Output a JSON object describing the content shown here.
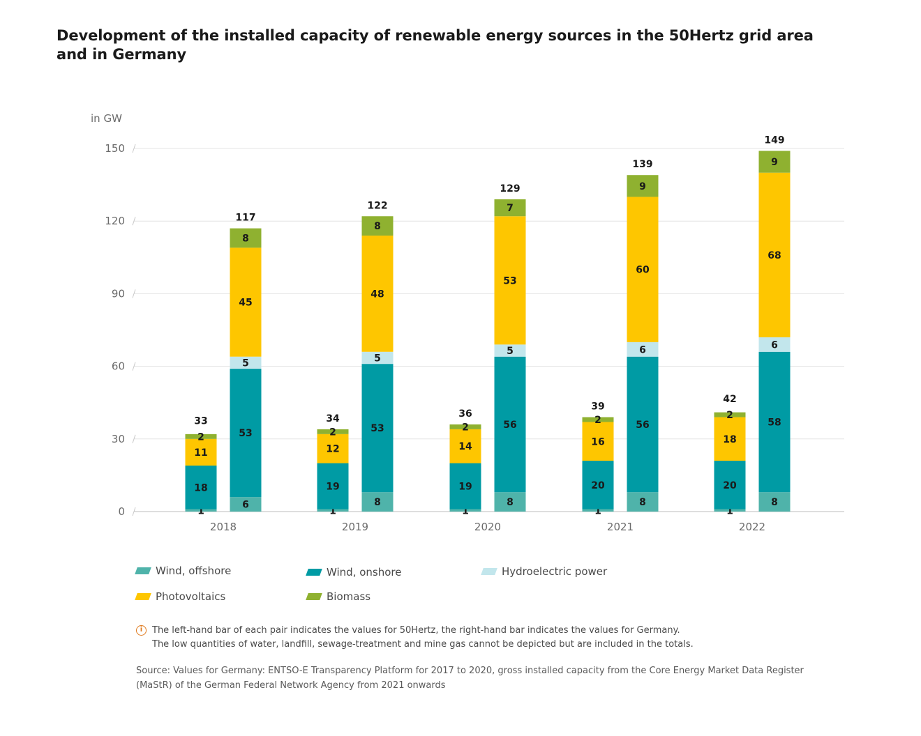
{
  "title": "Development of the installed capacity of renewable energy sources in the 50Hertz grid area and in Germany",
  "chart_data": {
    "type": "bar",
    "stacked": true,
    "grouped": true,
    "categories": [
      "2018",
      "2019",
      "2020",
      "2021",
      "2022"
    ],
    "ylabel": "in GW",
    "ylim": [
      0,
      150
    ],
    "yticks": [
      0,
      30,
      60,
      90,
      120,
      150
    ],
    "grid": true,
    "legend_position": "bottom",
    "groups": [
      {
        "key": "50hertz",
        "segments": {
          "Wind, offshore": [
            1,
            1,
            1,
            1,
            1
          ],
          "Wind, onshore": [
            18,
            19,
            19,
            20,
            20
          ],
          "Hydroelectric power": [
            0,
            0,
            0,
            0,
            0
          ],
          "Photovoltaics": [
            11,
            12,
            14,
            16,
            18
          ],
          "Biomass": [
            2,
            2,
            2,
            2,
            2
          ]
        },
        "totals": [
          33,
          34,
          36,
          39,
          42
        ]
      },
      {
        "key": "germany",
        "segments": {
          "Wind, offshore": [
            6,
            8,
            8,
            8,
            8
          ],
          "Wind, onshore": [
            53,
            53,
            56,
            56,
            58
          ],
          "Hydroelectric power": [
            5,
            5,
            5,
            6,
            6
          ],
          "Photovoltaics": [
            45,
            48,
            53,
            60,
            68
          ],
          "Biomass": [
            8,
            8,
            7,
            9,
            9
          ]
        },
        "totals": [
          117,
          122,
          129,
          139,
          149
        ]
      }
    ],
    "series": [
      {
        "name": "Wind, offshore",
        "color": "#4fb3aa"
      },
      {
        "name": "Wind, onshore",
        "color": "#009ba4"
      },
      {
        "name": "Hydroelectric power",
        "color": "#c2e6ec"
      },
      {
        "name": "Photovoltaics",
        "color": "#fec600"
      },
      {
        "name": "Biomass",
        "color": "#8fb130"
      }
    ]
  },
  "note": {
    "icon": "info-icon",
    "line1": "The left-hand bar of each pair indicates the values for 50Hertz, the right-hand bar indicates the values for Germany.",
    "line2": "The low quantities of water, landfill, sewage-treatment and mine gas cannot be depicted but are included in the totals."
  },
  "source": "Source: Values for Germany: ENTSO-E Transparency Platform for 2017 to 2020, gross installed capacity from the Core Energy Market Data Register (MaStR) of the German Federal Network Agency from 2021 onwards"
}
